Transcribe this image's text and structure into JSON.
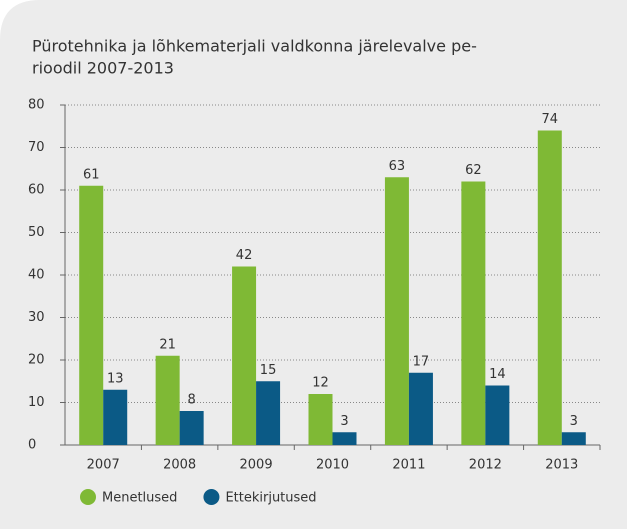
{
  "chart_data": {
    "type": "bar",
    "title": [
      "Pürotehnika ja lõhkematerjali valdkonna järelevalve pe-",
      "rioodil 2007-2013"
    ],
    "categories": [
      "2007",
      "2008",
      "2009",
      "2010",
      "2011",
      "2012",
      "2013"
    ],
    "series": [
      {
        "name": "Menetlused",
        "color": "#7fb935",
        "values": [
          61,
          21,
          42,
          12,
          63,
          62,
          74
        ]
      },
      {
        "name": "Ettekirjutused",
        "color": "#0b5a86",
        "values": [
          13,
          8,
          15,
          3,
          17,
          14,
          3
        ]
      }
    ],
    "ylim": [
      0,
      80
    ],
    "yticks": [
      0,
      10,
      20,
      30,
      40,
      50,
      60,
      70,
      80
    ],
    "grid": true,
    "legend": "bottom"
  }
}
